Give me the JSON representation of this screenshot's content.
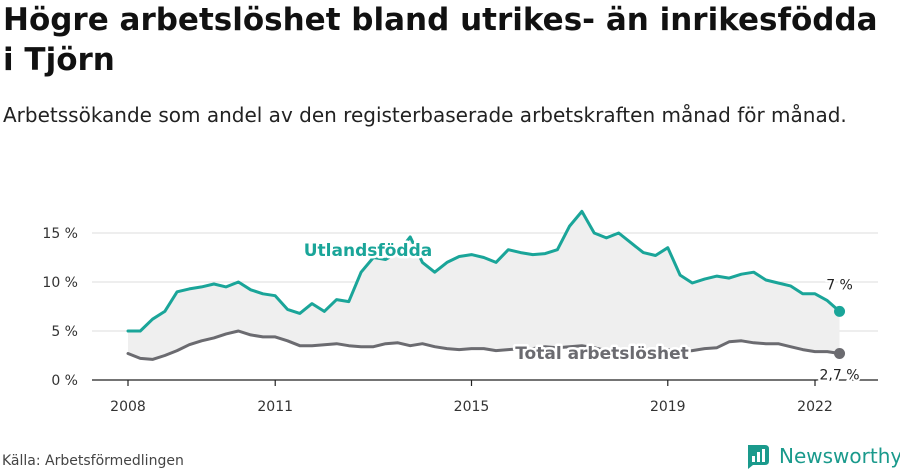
{
  "header": {
    "title": "Högre arbetslöshet bland utrikes- än inrikesfödda i Tjörn",
    "subtitle": "Arbetssökande som andel av den registerbaserade arbetskraften månad för månad."
  },
  "footer": {
    "source": "Källa: Arbetsförmedlingen",
    "brand": "Newsworthy"
  },
  "colors": {
    "foreign": "#1aa599",
    "total": "#6b6b70",
    "fill": "#efefef",
    "grid": "#dddddd",
    "brand": "#1a9a8c"
  },
  "chart_data": {
    "type": "line",
    "x_unit": "year",
    "xlim": [
      2008,
      2023.3
    ],
    "ylim": [
      0,
      17.5
    ],
    "xticks": [
      {
        "value": 2008,
        "label": "2008"
      },
      {
        "value": 2011,
        "label": "2011"
      },
      {
        "value": 2015,
        "label": "2015"
      },
      {
        "value": 2019,
        "label": "2019"
      },
      {
        "value": 2022,
        "label": "2022"
      }
    ],
    "yticks": [
      {
        "value": 0,
        "label": "0 %"
      },
      {
        "value": 5,
        "label": "5 %"
      },
      {
        "value": 10,
        "label": "10 %"
      },
      {
        "value": 15,
        "label": "15 %"
      }
    ],
    "grid": true,
    "series": [
      {
        "name": "Utlandsfödda",
        "key": "foreign",
        "end_label": "7 %",
        "x": [
          2008.0,
          2008.25,
          2008.5,
          2008.75,
          2009.0,
          2009.25,
          2009.5,
          2009.75,
          2010.0,
          2010.25,
          2010.5,
          2010.75,
          2011.0,
          2011.25,
          2011.5,
          2011.75,
          2012.0,
          2012.25,
          2012.5,
          2012.75,
          2013.0,
          2013.25,
          2013.5,
          2013.75,
          2014.0,
          2014.25,
          2014.5,
          2014.75,
          2015.0,
          2015.25,
          2015.5,
          2015.75,
          2016.0,
          2016.25,
          2016.5,
          2016.75,
          2017.0,
          2017.25,
          2017.5,
          2017.75,
          2018.0,
          2018.25,
          2018.5,
          2018.75,
          2019.0,
          2019.25,
          2019.5,
          2019.75,
          2020.0,
          2020.25,
          2020.5,
          2020.75,
          2021.0,
          2021.25,
          2021.5,
          2021.75,
          2022.0,
          2022.25,
          2022.5
        ],
        "values": [
          5.0,
          5.0,
          6.2,
          7.0,
          9.0,
          9.3,
          9.5,
          9.8,
          9.5,
          10.0,
          9.2,
          8.8,
          8.6,
          7.2,
          6.8,
          7.8,
          7.0,
          8.2,
          8.0,
          11.0,
          12.5,
          12.3,
          13.0,
          14.6,
          12.0,
          11.0,
          12.0,
          12.6,
          12.8,
          12.5,
          12.0,
          13.3,
          13.0,
          12.8,
          12.9,
          13.3,
          15.7,
          17.2,
          15.0,
          14.5,
          15.0,
          14.0,
          13.0,
          12.7,
          13.5,
          10.7,
          9.9,
          10.3,
          10.6,
          10.4,
          10.8,
          11.0,
          10.2,
          9.9,
          9.6,
          8.8,
          8.8,
          8.1,
          7.0
        ]
      },
      {
        "name": "Total arbetslöshet",
        "key": "total",
        "end_label": "2,7 %",
        "x": [
          2008.0,
          2008.25,
          2008.5,
          2008.75,
          2009.0,
          2009.25,
          2009.5,
          2009.75,
          2010.0,
          2010.25,
          2010.5,
          2010.75,
          2011.0,
          2011.25,
          2011.5,
          2011.75,
          2012.0,
          2012.25,
          2012.5,
          2012.75,
          2013.0,
          2013.25,
          2013.5,
          2013.75,
          2014.0,
          2014.25,
          2014.5,
          2014.75,
          2015.0,
          2015.25,
          2015.5,
          2015.75,
          2016.0,
          2016.25,
          2016.5,
          2016.75,
          2017.0,
          2017.25,
          2017.5,
          2017.75,
          2018.0,
          2018.25,
          2018.5,
          2018.75,
          2019.0,
          2019.25,
          2019.5,
          2019.75,
          2020.0,
          2020.25,
          2020.5,
          2020.75,
          2021.0,
          2021.25,
          2021.5,
          2021.75,
          2022.0,
          2022.25,
          2022.5
        ],
        "values": [
          2.7,
          2.2,
          2.1,
          2.5,
          3.0,
          3.6,
          4.0,
          4.3,
          4.7,
          5.0,
          4.6,
          4.4,
          4.4,
          4.0,
          3.5,
          3.5,
          3.6,
          3.7,
          3.5,
          3.4,
          3.4,
          3.7,
          3.8,
          3.5,
          3.7,
          3.4,
          3.2,
          3.1,
          3.2,
          3.2,
          3.0,
          3.1,
          3.2,
          3.2,
          3.4,
          3.3,
          3.4,
          3.5,
          3.3,
          3.0,
          3.1,
          3.0,
          3.0,
          3.0,
          3.1,
          2.9,
          3.0,
          3.2,
          3.3,
          3.9,
          4.0,
          3.8,
          3.7,
          3.7,
          3.4,
          3.1,
          2.9,
          2.9,
          2.7
        ]
      }
    ]
  }
}
